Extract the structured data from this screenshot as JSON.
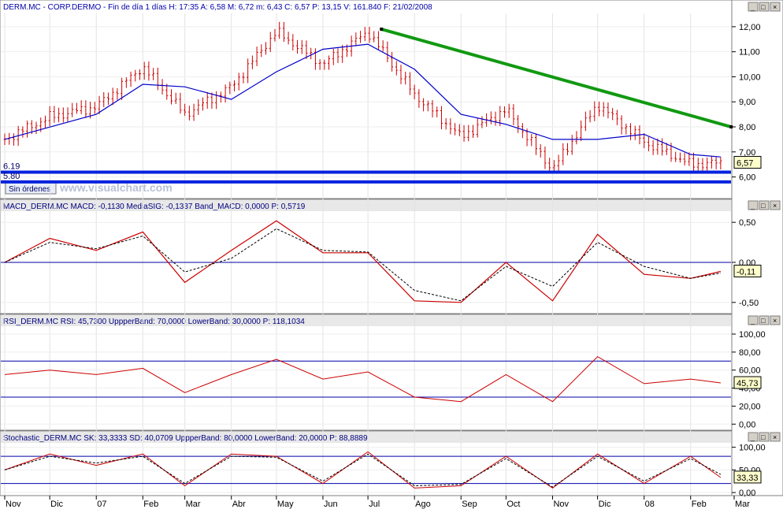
{
  "header": {
    "main": "DERM.MC - CORP.DERMO - Fin de día 1 días  H: 17:35  A: 6,58  M: 6,72  m: 6,43  C: 6,57  P: 13,15  V: 161.840  F: 21/02/2008",
    "macd": "MACD_DERM.MC  MACD: -0,1130  MediaSIG: -0,1337  Band_MACD: 0,0000  P: 0,5719",
    "rsi": "RSI_DERM.MC  RSI: 45,7300  UppperBand: 70,0000  LowerBand: 30,0000  P: 118,1034",
    "stoch": "Stochastic_DERM.MC  SK: 33,3333  SD: 40,0709  UppperBand: 80,0000  LowerBand: 20,0000  P: 88,8889"
  },
  "window_buttons": {
    "minimize": "_",
    "maximize": "□",
    "close": "×"
  },
  "sin_ordenes_label": "Sin órdenes",
  "watermark": "www.visualchart.com",
  "colors": {
    "price_bar": "#cc0000",
    "moving_average": "#0000cc",
    "trendline": "#119911",
    "support": "#0022dd",
    "indicator_line": "#cc0000",
    "indicator_signal": "#000000",
    "band": "#0000aa",
    "header_text": "#0000aa",
    "value_box": "#ffffcc"
  },
  "chart_data": [
    {
      "type": "candlestick",
      "name": "price",
      "x_ticks": [
        "Nov",
        "Dic",
        "07",
        "Feb",
        "Mar",
        "Abr",
        "May",
        "Jun",
        "Jul",
        "Ago",
        "Sep",
        "Oct",
        "Nov",
        "Dic",
        "08",
        "Feb",
        "Mar"
      ],
      "x_start": "2006-11-01",
      "x_end": "2008-03-01",
      "ylim": [
        5.2,
        12.5
      ],
      "y_ticks": [
        "12,00",
        "11,00",
        "10,00",
        "9,00",
        "8,00",
        "7,00",
        "6,00"
      ],
      "last_value_label": "6,57",
      "ohlc": [
        {
          "x": "2006-11-01",
          "close": 7.5
        },
        {
          "x": "2006-12-01",
          "close": 8.4
        },
        {
          "x": "2007-01-01",
          "close": 8.8
        },
        {
          "x": "2007-02-01",
          "close": 10.4
        },
        {
          "x": "2007-03-01",
          "close": 8.5
        },
        {
          "x": "2007-04-01",
          "close": 9.6
        },
        {
          "x": "2007-05-01",
          "close": 11.8
        },
        {
          "x": "2007-06-01",
          "close": 10.5
        },
        {
          "x": "2007-07-01",
          "close": 11.8
        },
        {
          "x": "2007-08-01",
          "close": 9.3
        },
        {
          "x": "2007-09-01",
          "close": 7.6
        },
        {
          "x": "2007-10-01",
          "close": 8.7
        },
        {
          "x": "2007-11-01",
          "close": 6.3
        },
        {
          "x": "2007-12-01",
          "close": 8.9
        },
        {
          "x": "2008-01-01",
          "close": 7.4
        },
        {
          "x": "2008-02-01",
          "close": 6.5
        },
        {
          "x": "2008-02-21",
          "close": 6.57
        }
      ],
      "moving_average": [
        {
          "x": "2006-11-01",
          "y": 7.5
        },
        {
          "x": "2007-01-01",
          "y": 8.5
        },
        {
          "x": "2007-02-01",
          "y": 9.7
        },
        {
          "x": "2007-03-01",
          "y": 9.6
        },
        {
          "x": "2007-04-01",
          "y": 9.1
        },
        {
          "x": "2007-05-01",
          "y": 10.2
        },
        {
          "x": "2007-06-01",
          "y": 11.1
        },
        {
          "x": "2007-07-01",
          "y": 11.3
        },
        {
          "x": "2007-08-01",
          "y": 10.3
        },
        {
          "x": "2007-09-01",
          "y": 8.5
        },
        {
          "x": "2007-10-01",
          "y": 8.1
        },
        {
          "x": "2007-11-01",
          "y": 7.5
        },
        {
          "x": "2007-12-01",
          "y": 7.5
        },
        {
          "x": "2008-01-01",
          "y": 7.7
        },
        {
          "x": "2008-02-01",
          "y": 6.9
        },
        {
          "x": "2008-02-21",
          "y": 6.8
        }
      ],
      "trendline": [
        {
          "x": "2007-07-10",
          "y": 11.9
        },
        {
          "x": "2008-02-28",
          "y": 8.0
        }
      ],
      "support_lines": [
        {
          "label": "6.19",
          "y": 6.19
        },
        {
          "label": "5.80",
          "y": 5.8
        }
      ]
    },
    {
      "type": "line",
      "name": "MACD",
      "ylim": [
        -0.62,
        0.62
      ],
      "y_ticks": [
        "0,50",
        "0,00",
        "-0,50"
      ],
      "band": 0.0,
      "last_value_label": "-0,11",
      "macd": [
        {
          "x": "2006-11-01",
          "y": 0.0
        },
        {
          "x": "2006-12-01",
          "y": 0.3
        },
        {
          "x": "2007-01-01",
          "y": 0.15
        },
        {
          "x": "2007-02-01",
          "y": 0.38
        },
        {
          "x": "2007-03-01",
          "y": -0.25
        },
        {
          "x": "2007-04-01",
          "y": 0.15
        },
        {
          "x": "2007-05-01",
          "y": 0.52
        },
        {
          "x": "2007-06-01",
          "y": 0.12
        },
        {
          "x": "2007-07-01",
          "y": 0.12
        },
        {
          "x": "2007-08-01",
          "y": -0.48
        },
        {
          "x": "2007-09-01",
          "y": -0.5
        },
        {
          "x": "2007-10-01",
          "y": 0.0
        },
        {
          "x": "2007-11-01",
          "y": -0.48
        },
        {
          "x": "2007-12-01",
          "y": 0.35
        },
        {
          "x": "2008-01-01",
          "y": -0.15
        },
        {
          "x": "2008-02-01",
          "y": -0.2
        },
        {
          "x": "2008-02-21",
          "y": -0.113
        }
      ],
      "signal": [
        {
          "x": "2006-11-01",
          "y": 0.0
        },
        {
          "x": "2006-12-01",
          "y": 0.25
        },
        {
          "x": "2007-01-01",
          "y": 0.17
        },
        {
          "x": "2007-02-01",
          "y": 0.33
        },
        {
          "x": "2007-03-01",
          "y": -0.12
        },
        {
          "x": "2007-04-01",
          "y": 0.05
        },
        {
          "x": "2007-05-01",
          "y": 0.42
        },
        {
          "x": "2007-06-01",
          "y": 0.15
        },
        {
          "x": "2007-07-01",
          "y": 0.13
        },
        {
          "x": "2007-08-01",
          "y": -0.35
        },
        {
          "x": "2007-09-01",
          "y": -0.48
        },
        {
          "x": "2007-10-01",
          "y": -0.05
        },
        {
          "x": "2007-11-01",
          "y": -0.3
        },
        {
          "x": "2007-12-01",
          "y": 0.25
        },
        {
          "x": "2008-01-01",
          "y": -0.05
        },
        {
          "x": "2008-02-01",
          "y": -0.2
        },
        {
          "x": "2008-02-21",
          "y": -0.1337
        }
      ]
    },
    {
      "type": "line",
      "name": "RSI",
      "ylim": [
        -5,
        107
      ],
      "y_ticks": [
        "100,00",
        "80,00",
        "60,00",
        "40,00",
        "20,00",
        "0,00"
      ],
      "bands": [
        70,
        30
      ],
      "last_value_label": "45,73",
      "rsi": [
        {
          "x": "2006-11-01",
          "y": 55
        },
        {
          "x": "2006-12-01",
          "y": 60
        },
        {
          "x": "2007-01-01",
          "y": 55
        },
        {
          "x": "2007-02-01",
          "y": 62
        },
        {
          "x": "2007-03-01",
          "y": 35
        },
        {
          "x": "2007-04-01",
          "y": 55
        },
        {
          "x": "2007-05-01",
          "y": 72
        },
        {
          "x": "2007-06-01",
          "y": 50
        },
        {
          "x": "2007-07-01",
          "y": 58
        },
        {
          "x": "2007-08-01",
          "y": 30
        },
        {
          "x": "2007-09-01",
          "y": 25
        },
        {
          "x": "2007-10-01",
          "y": 55
        },
        {
          "x": "2007-11-01",
          "y": 25
        },
        {
          "x": "2007-12-01",
          "y": 75
        },
        {
          "x": "2008-01-01",
          "y": 45
        },
        {
          "x": "2008-02-01",
          "y": 50
        },
        {
          "x": "2008-02-21",
          "y": 45.73
        }
      ]
    },
    {
      "type": "line",
      "name": "Stochastic",
      "ylim": [
        -5,
        108
      ],
      "y_ticks": [
        "100,00",
        "50,00",
        "0,00"
      ],
      "bands": [
        80,
        20
      ],
      "last_value_label": "33,33",
      "sk": [
        {
          "x": "2006-11-01",
          "y": 50
        },
        {
          "x": "2006-12-01",
          "y": 85
        },
        {
          "x": "2007-01-01",
          "y": 60
        },
        {
          "x": "2007-02-01",
          "y": 85
        },
        {
          "x": "2007-03-01",
          "y": 15
        },
        {
          "x": "2007-04-01",
          "y": 85
        },
        {
          "x": "2007-05-01",
          "y": 80
        },
        {
          "x": "2007-06-01",
          "y": 20
        },
        {
          "x": "2007-07-01",
          "y": 90
        },
        {
          "x": "2007-08-01",
          "y": 10
        },
        {
          "x": "2007-09-01",
          "y": 15
        },
        {
          "x": "2007-10-01",
          "y": 80
        },
        {
          "x": "2007-11-01",
          "y": 10
        },
        {
          "x": "2007-12-01",
          "y": 85
        },
        {
          "x": "2008-01-01",
          "y": 20
        },
        {
          "x": "2008-02-01",
          "y": 80
        },
        {
          "x": "2008-02-21",
          "y": 33.33
        }
      ],
      "sd": [
        {
          "x": "2006-11-01",
          "y": 50
        },
        {
          "x": "2006-12-01",
          "y": 80
        },
        {
          "x": "2007-01-01",
          "y": 65
        },
        {
          "x": "2007-02-01",
          "y": 80
        },
        {
          "x": "2007-03-01",
          "y": 20
        },
        {
          "x": "2007-04-01",
          "y": 80
        },
        {
          "x": "2007-05-01",
          "y": 78
        },
        {
          "x": "2007-06-01",
          "y": 25
        },
        {
          "x": "2007-07-01",
          "y": 85
        },
        {
          "x": "2007-08-01",
          "y": 15
        },
        {
          "x": "2007-09-01",
          "y": 18
        },
        {
          "x": "2007-10-01",
          "y": 75
        },
        {
          "x": "2007-11-01",
          "y": 12
        },
        {
          "x": "2007-12-01",
          "y": 80
        },
        {
          "x": "2008-01-01",
          "y": 25
        },
        {
          "x": "2008-02-01",
          "y": 75
        },
        {
          "x": "2008-02-21",
          "y": 40.07
        }
      ]
    }
  ]
}
